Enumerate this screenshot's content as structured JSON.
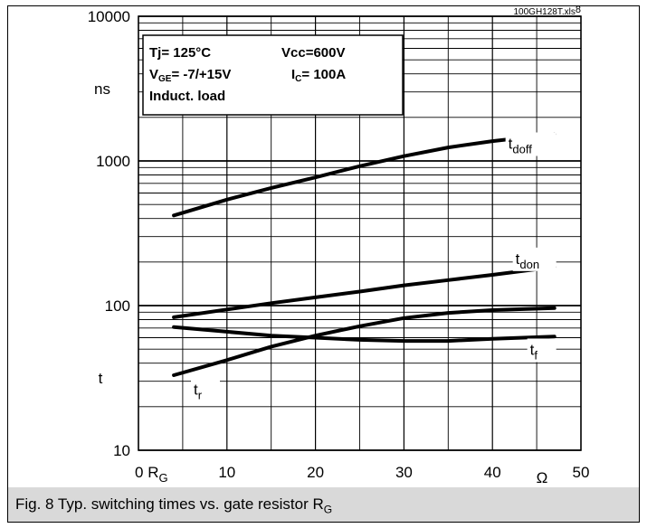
{
  "chart_data": {
    "type": "line",
    "file_tag": "100GH128T.xls",
    "file_tag_sup": "8",
    "caption": "Fig. 8 Typ. switching times vs. gate resistor R",
    "caption_sub": "G",
    "y_scale": "log",
    "ylim": [
      10,
      10000
    ],
    "xlim": [
      0,
      50
    ],
    "grid": true,
    "y_ticks": [
      "10000",
      "1000",
      "100",
      "10"
    ],
    "y_unit": "ns",
    "y_symbol": "t",
    "x_ticks": [
      "10",
      "20",
      "30",
      "40",
      "50"
    ],
    "x_zero": "0",
    "x_label_main": "R",
    "x_label_sub": "G",
    "x_unit": "Ω",
    "info_box": {
      "tj": "Tj= 125°C",
      "vcc": "Vcc=600V",
      "vge_main": "V",
      "vge_sub": "GE",
      "vge_val": "= -7/+15V",
      "ic_main": "I",
      "ic_sub": "C",
      "ic_val": "= 100A",
      "load": "Induct. load"
    },
    "series": [
      {
        "name": "t",
        "sub": "doff",
        "label_at": [
          47,
          1250
        ],
        "x": [
          4,
          10,
          15,
          20,
          25,
          30,
          35,
          40,
          47
        ],
        "y": [
          420,
          540,
          650,
          770,
          920,
          1080,
          1240,
          1370,
          1530
        ]
      },
      {
        "name": "t",
        "sub": "don",
        "label_at": [
          47,
          200
        ],
        "x": [
          4,
          10,
          15,
          20,
          25,
          30,
          35,
          40,
          47
        ],
        "y": [
          83,
          94,
          104,
          114,
          125,
          138,
          150,
          163,
          185
        ]
      },
      {
        "name": "t",
        "sub": "r",
        "label_at": [
          9,
          25
        ],
        "x": [
          4,
          10,
          15,
          20,
          25,
          30,
          35,
          40,
          47
        ],
        "y": [
          33,
          42,
          52,
          62,
          72,
          82,
          89,
          93,
          96
        ]
      },
      {
        "name": "t",
        "sub": "f",
        "label_at": [
          47,
          47
        ],
        "x": [
          4,
          10,
          15,
          20,
          25,
          30,
          35,
          40,
          47
        ],
        "y": [
          71,
          66,
          62,
          60,
          58,
          57,
          57,
          59,
          61
        ]
      }
    ]
  }
}
